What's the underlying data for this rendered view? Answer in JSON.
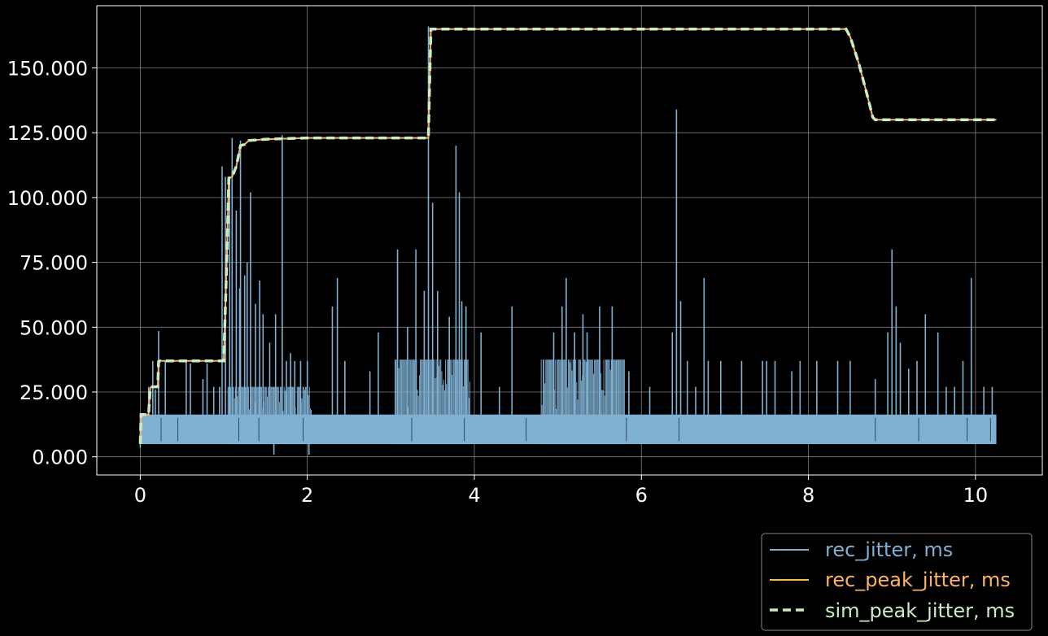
{
  "chart_data": {
    "type": "line",
    "title": "",
    "xlabel": "",
    "ylabel": "",
    "xlim": [
      -0.52,
      10.8
    ],
    "ylim": [
      -7.0,
      174.0
    ],
    "grid": true,
    "legend_placement": "bottom-right, outside plot",
    "x_ticks": [
      0,
      2,
      4,
      6,
      8,
      10
    ],
    "x_tick_labels": [
      "0",
      "2",
      "4",
      "6",
      "8",
      "10"
    ],
    "y_ticks": [
      0,
      25,
      50,
      75,
      100,
      125,
      150
    ],
    "y_tick_labels": [
      "0.000",
      "25.000",
      "50.000",
      "75.000",
      "100.000",
      "125.000",
      "150.000"
    ],
    "colors": {
      "background": "#000000",
      "axes": "#ffffff",
      "grid": "#7f7f7f",
      "rec_jitter": "#80b1d3",
      "rec_peak_jitter": "#fdb462",
      "sim_peak_jitter": "#ccebc5"
    },
    "series": [
      {
        "name": "rec_jitter, ms",
        "style": "solid",
        "baseline_band": [
          [
            0.0,
            4.9,
            16.3
          ],
          [
            10.25,
            4.9,
            16.3
          ]
        ],
        "dense_bands": [
          [
            1.05,
            2.05,
            27.0
          ],
          [
            3.05,
            3.95,
            37.5
          ],
          [
            4.8,
            5.8,
            37.5
          ]
        ],
        "spikes": [
          [
            0.1,
            27
          ],
          [
            0.15,
            37
          ],
          [
            0.18,
            26
          ],
          [
            0.22,
            48.5
          ],
          [
            0.3,
            37
          ],
          [
            0.55,
            37
          ],
          [
            0.6,
            36
          ],
          [
            0.75,
            30
          ],
          [
            0.8,
            36
          ],
          [
            0.88,
            27
          ],
          [
            0.95,
            27
          ],
          [
            0.98,
            112
          ],
          [
            1.02,
            108
          ],
          [
            1.07,
            108
          ],
          [
            1.1,
            123
          ],
          [
            1.15,
            95
          ],
          [
            1.19,
            65
          ],
          [
            1.2,
            122
          ],
          [
            1.25,
            70
          ],
          [
            1.28,
            75
          ],
          [
            1.32,
            102
          ],
          [
            1.38,
            59
          ],
          [
            1.43,
            68
          ],
          [
            1.47,
            55
          ],
          [
            1.55,
            44
          ],
          [
            1.62,
            55
          ],
          [
            1.7,
            124
          ],
          [
            1.75,
            37
          ],
          [
            1.8,
            40
          ],
          [
            1.85,
            37
          ],
          [
            1.92,
            37
          ],
          [
            2.0,
            37
          ],
          [
            2.3,
            58
          ],
          [
            2.36,
            69
          ],
          [
            2.45,
            37
          ],
          [
            2.75,
            33
          ],
          [
            2.85,
            48
          ],
          [
            3.08,
            80
          ],
          [
            3.2,
            50
          ],
          [
            3.3,
            80
          ],
          [
            3.4,
            64
          ],
          [
            3.45,
            166
          ],
          [
            3.5,
            98
          ],
          [
            3.56,
            64
          ],
          [
            3.7,
            54
          ],
          [
            3.78,
            120
          ],
          [
            3.82,
            102
          ],
          [
            3.85,
            60
          ],
          [
            3.9,
            58
          ],
          [
            4.08,
            48
          ],
          [
            4.3,
            27
          ],
          [
            4.45,
            58
          ],
          [
            4.95,
            48
          ],
          [
            5.05,
            58
          ],
          [
            5.1,
            69
          ],
          [
            5.2,
            48
          ],
          [
            5.3,
            55
          ],
          [
            5.35,
            48
          ],
          [
            5.5,
            58
          ],
          [
            5.65,
            58
          ],
          [
            5.7,
            37
          ],
          [
            5.85,
            33
          ],
          [
            6.1,
            27
          ],
          [
            6.37,
            48
          ],
          [
            6.42,
            134
          ],
          [
            6.47,
            60
          ],
          [
            6.55,
            37
          ],
          [
            6.65,
            27
          ],
          [
            6.75,
            69
          ],
          [
            6.8,
            37
          ],
          [
            6.95,
            37
          ],
          [
            7.2,
            37
          ],
          [
            7.45,
            37
          ],
          [
            7.5,
            37
          ],
          [
            7.6,
            37
          ],
          [
            7.8,
            33
          ],
          [
            7.9,
            37
          ],
          [
            8.1,
            37
          ],
          [
            8.35,
            37
          ],
          [
            8.5,
            37
          ],
          [
            8.8,
            30
          ],
          [
            8.95,
            48
          ],
          [
            9.0,
            80
          ],
          [
            9.05,
            58
          ],
          [
            9.1,
            44
          ],
          [
            9.2,
            34
          ],
          [
            9.3,
            37
          ],
          [
            9.4,
            55
          ],
          [
            9.55,
            48
          ],
          [
            9.65,
            27
          ],
          [
            9.75,
            27
          ],
          [
            9.85,
            37
          ],
          [
            9.95,
            69
          ],
          [
            10.1,
            27
          ],
          [
            10.2,
            27
          ],
          [
            1.6,
            0.8
          ],
          [
            2.02,
            0.8
          ],
          [
            0.0,
            3.5
          ]
        ]
      },
      {
        "name": "rec_peak_jitter, ms",
        "style": "solid",
        "x": [
          0,
          0.01,
          0.1,
          0.12,
          0.13,
          0.21,
          0.22,
          0.24,
          1.0,
          1.04,
          1.06,
          1.1,
          1.15,
          1.2,
          1.25,
          1.3,
          1.5,
          2.0,
          3.45,
          3.48,
          3.52,
          8.45,
          8.5,
          8.6,
          8.7,
          8.77,
          8.8,
          10.25
        ],
        "y": [
          5,
          16.3,
          16.3,
          26.5,
          27,
          27,
          36.8,
          37,
          37,
          80,
          107.5,
          108,
          112,
          120,
          120.5,
          122,
          122.5,
          123,
          123,
          165,
          165,
          165,
          162,
          152,
          140,
          131,
          130,
          130
        ]
      },
      {
        "name": "sim_peak_jitter, ms",
        "style": "dashed",
        "x": [
          0,
          0.01,
          0.1,
          0.12,
          0.13,
          0.21,
          0.22,
          0.24,
          1.0,
          1.04,
          1.06,
          1.1,
          1.15,
          1.2,
          1.25,
          1.3,
          1.5,
          2.0,
          3.45,
          3.48,
          3.52,
          8.45,
          8.5,
          8.6,
          8.7,
          8.77,
          8.8,
          10.25
        ],
        "y": [
          5,
          16.3,
          16.3,
          26.5,
          27,
          27,
          36.8,
          37,
          37,
          80,
          107.5,
          108,
          112,
          120,
          120.5,
          122,
          122.5,
          123,
          123,
          165,
          165,
          165,
          162,
          152,
          140,
          131,
          130,
          130
        ]
      }
    ]
  }
}
